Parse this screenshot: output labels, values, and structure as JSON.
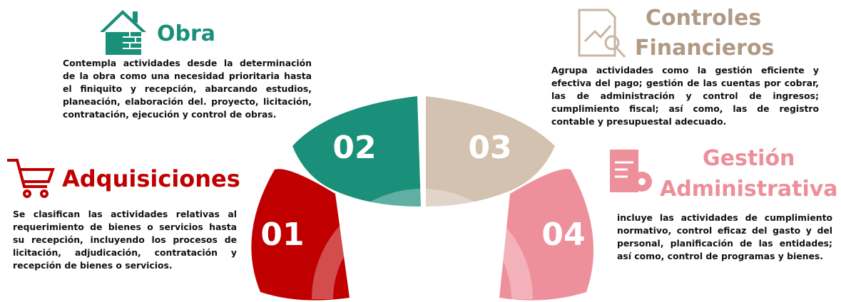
{
  "sections": [
    {
      "number": "01",
      "title": [
        "Adquisiciones"
      ],
      "text": "Se clasifican las actividades relativas al requerimiento de bienes o servicios hasta su recepción, incluyendo los procesos de licitación, adjudicación, contratación y recepción de bienes o servicios."
    },
    {
      "number": "02",
      "title": [
        "Obra"
      ],
      "text": "Contempla actividades desde la determinación de la obra como una necesidad prioritaria hasta el finiquito y recepción, abarcando estudios, planeación, elaboración del. proyecto, licitación, contratación, ejecución y control de obras."
    },
    {
      "number": "03",
      "title": [
        "Controles",
        "Financieros"
      ],
      "text": "Agrupa actividades como la gestión eficiente y efectiva del pago; gestión de las cuentas por cobrar, las de administración y control de ingresos; cumplimiento fiscal; así como, las de registro contable y presupuestal adecuado."
    },
    {
      "number": "04",
      "title": [
        "Gestión",
        "Administrativa"
      ],
      "text": "incluye las actividades de cumplimiento normativo, control eficaz del gasto y del personal, planificación de las entidades; así como, control de programas y bienes."
    }
  ]
}
